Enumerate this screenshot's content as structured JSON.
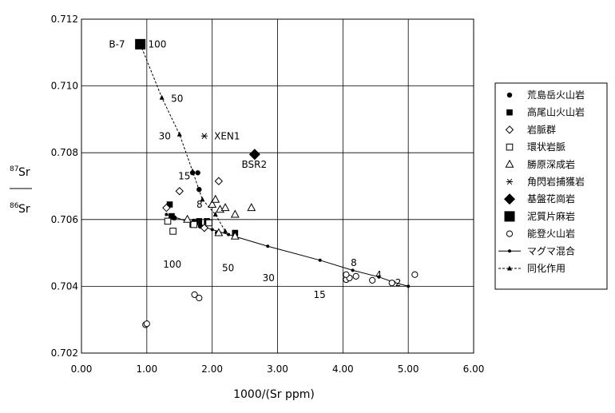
{
  "chart_data": {
    "type": "scatter",
    "title": "",
    "xlabel": "1000/(Sr ppm)",
    "ylabel": {
      "num_sup": "87",
      "num": "Sr",
      "den_sup": "86",
      "den": "Sr"
    },
    "xlim": [
      0,
      6
    ],
    "ylim": [
      0.702,
      0.712
    ],
    "xticks": [
      "0.00",
      "1.00",
      "2.00",
      "3.00",
      "4.00",
      "5.00",
      "6.00"
    ],
    "yticks": [
      "0.702",
      "0.704",
      "0.706",
      "0.708",
      "0.710",
      "0.712"
    ],
    "grid": true,
    "legend_position": "right",
    "series": [
      {
        "name": "荒島岳火山岩",
        "marker": "filled-circle",
        "points": [
          [
            1.42,
            0.70605
          ],
          [
            1.7,
            0.7074
          ],
          [
            1.78,
            0.7074
          ],
          [
            1.8,
            0.7069
          ],
          [
            1.72,
            0.70595
          ],
          [
            1.82,
            0.7058
          ],
          [
            2.08,
            0.7056
          ]
        ]
      },
      {
        "name": "高尾山火山岩",
        "marker": "filled-square",
        "points": [
          [
            1.35,
            0.70645
          ],
          [
            1.38,
            0.7061
          ],
          [
            1.7,
            0.70585
          ],
          [
            1.8,
            0.70595
          ],
          [
            1.92,
            0.70595
          ],
          [
            2.35,
            0.7056
          ]
        ]
      },
      {
        "name": "岩脈群",
        "marker": "open-diamond",
        "points": [
          [
            1.3,
            0.70635
          ],
          [
            1.5,
            0.70685
          ],
          [
            1.88,
            0.70575
          ],
          [
            2.1,
            0.70715
          ]
        ]
      },
      {
        "name": "環状岩脈",
        "marker": "open-square",
        "points": [
          [
            1.32,
            0.70595
          ],
          [
            1.4,
            0.70565
          ],
          [
            1.72,
            0.70585
          ],
          [
            1.95,
            0.7059
          ]
        ]
      },
      {
        "name": "勝原深成岩",
        "marker": "open-triangle",
        "points": [
          [
            1.62,
            0.706
          ],
          [
            2.0,
            0.70645
          ],
          [
            2.05,
            0.7066
          ],
          [
            2.12,
            0.7063
          ],
          [
            2.2,
            0.70635
          ],
          [
            2.35,
            0.70615
          ],
          [
            2.6,
            0.70635
          ],
          [
            2.1,
            0.7056
          ],
          [
            2.35,
            0.7055
          ]
        ]
      },
      {
        "name": "角閃岩捕獲岩",
        "marker": "asterisk",
        "points": [
          [
            1.88,
            0.7085
          ]
        ]
      },
      {
        "name": "基盤花崗岩",
        "marker": "filled-diamond",
        "points": [
          [
            2.65,
            0.70795
          ]
        ]
      },
      {
        "name": "泥質片麻岩",
        "marker": "big-filled-square",
        "points": [
          [
            0.9,
            0.71125
          ]
        ]
      },
      {
        "name": "能登火山岩",
        "marker": "open-circle",
        "points": [
          [
            0.98,
            0.70285
          ],
          [
            1.0,
            0.70288
          ],
          [
            1.73,
            0.70375
          ],
          [
            1.8,
            0.70365
          ],
          [
            4.05,
            0.7042
          ],
          [
            4.1,
            0.70425
          ],
          [
            4.2,
            0.7043
          ],
          [
            4.05,
            0.70435
          ],
          [
            4.45,
            0.70418
          ],
          [
            4.75,
            0.7041
          ],
          [
            5.1,
            0.70435
          ]
        ]
      }
    ],
    "lines": [
      {
        "name": "マグマ混合",
        "style": "solid",
        "marker": "dot",
        "points": [
          [
            1.3,
            0.70615
          ],
          [
            2.0,
            0.7057
          ],
          [
            2.25,
            0.70555
          ],
          [
            2.85,
            0.7052
          ],
          [
            3.65,
            0.70478
          ],
          [
            4.15,
            0.70448
          ],
          [
            4.55,
            0.70428
          ],
          [
            4.78,
            0.70412
          ],
          [
            5.0,
            0.704
          ]
        ]
      },
      {
        "name": "同化作用",
        "style": "dashed",
        "marker": "triangle",
        "points": [
          [
            0.9,
            0.71125
          ],
          [
            1.23,
            0.70965
          ],
          [
            1.5,
            0.70855
          ],
          [
            1.7,
            0.70745
          ],
          [
            1.85,
            0.7066
          ],
          [
            2.05,
            0.70615
          ],
          [
            2.2,
            0.70565
          ]
        ]
      }
    ],
    "annotations": [
      {
        "text": "B-7",
        "x": 0.42,
        "y": 0.71125
      },
      {
        "text": "100",
        "x": 1.02,
        "y": 0.71125
      },
      {
        "text": "50",
        "x": 1.37,
        "y": 0.70962
      },
      {
        "text": "30",
        "x": 1.18,
        "y": 0.7085
      },
      {
        "text": "XEN1",
        "x": 2.03,
        "y": 0.7085
      },
      {
        "text": "15",
        "x": 1.48,
        "y": 0.7073
      },
      {
        "text": "BSR2",
        "x": 2.45,
        "y": 0.70765
      },
      {
        "text": "8",
        "x": 1.76,
        "y": 0.70645
      },
      {
        "text": "100",
        "x": 1.25,
        "y": 0.70465
      },
      {
        "text": "50",
        "x": 2.15,
        "y": 0.70455
      },
      {
        "text": "30",
        "x": 2.77,
        "y": 0.70425
      },
      {
        "text": "15",
        "x": 3.55,
        "y": 0.70375
      },
      {
        "text": "8",
        "x": 4.12,
        "y": 0.7047
      },
      {
        "text": "4",
        "x": 4.5,
        "y": 0.70435
      },
      {
        "text": "2",
        "x": 4.8,
        "y": 0.7041
      }
    ]
  },
  "legend": [
    {
      "label": "荒島岳火山岩",
      "marker": "filled-circle"
    },
    {
      "label": "高尾山火山岩",
      "marker": "filled-square"
    },
    {
      "label": "岩脈群",
      "marker": "open-diamond"
    },
    {
      "label": "環状岩脈",
      "marker": "open-square"
    },
    {
      "label": "勝原深成岩",
      "marker": "open-triangle"
    },
    {
      "label": "角閃岩捕獲岩",
      "marker": "asterisk"
    },
    {
      "label": "基盤花崗岩",
      "marker": "filled-diamond"
    },
    {
      "label": "泥質片麻岩",
      "marker": "big-filled-square"
    },
    {
      "label": "能登火山岩",
      "marker": "open-circle"
    },
    {
      "label": "マグマ混合",
      "marker": "line-dot"
    },
    {
      "label": "同化作用",
      "marker": "dash-triangle"
    }
  ]
}
